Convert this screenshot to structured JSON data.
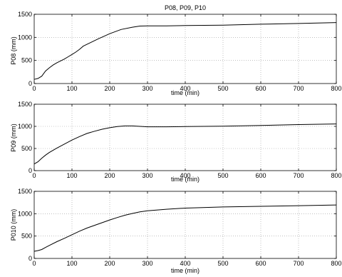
{
  "chart_data": [
    {
      "type": "line",
      "title": "P08, P09, P10",
      "xlabel": "time (min)",
      "ylabel": "P08 (mm)",
      "xlim": [
        0,
        800
      ],
      "ylim": [
        0,
        1500
      ],
      "xticks": [
        0,
        100,
        200,
        300,
        400,
        500,
        600,
        700,
        800
      ],
      "yticks": [
        0,
        500,
        1000,
        1500
      ],
      "grid": true,
      "series": [
        {
          "x": [
            0,
            10,
            20,
            30,
            40,
            50,
            60,
            70,
            80,
            90,
            100,
            110,
            120,
            130,
            150,
            170,
            200,
            230,
            260,
            280,
            300,
            350,
            400,
            500,
            600,
            700,
            800
          ],
          "y": [
            90,
            110,
            160,
            270,
            340,
            400,
            450,
            490,
            530,
            580,
            630,
            680,
            740,
            810,
            890,
            970,
            1080,
            1170,
            1220,
            1245,
            1250,
            1250,
            1255,
            1265,
            1285,
            1300,
            1320
          ]
        }
      ]
    },
    {
      "type": "line",
      "title": "",
      "xlabel": "time (min)",
      "ylabel": "P09 (mm)",
      "xlim": [
        0,
        800
      ],
      "ylim": [
        0,
        1500
      ],
      "xticks": [
        0,
        100,
        200,
        300,
        400,
        500,
        600,
        700,
        800
      ],
      "yticks": [
        0,
        500,
        1000,
        1500
      ],
      "grid": true,
      "series": [
        {
          "x": [
            0,
            10,
            20,
            30,
            40,
            60,
            80,
            100,
            120,
            140,
            160,
            180,
            200,
            220,
            240,
            260,
            280,
            300,
            350,
            400,
            500,
            600,
            700,
            800
          ],
          "y": [
            150,
            200,
            280,
            350,
            410,
            510,
            600,
            690,
            770,
            840,
            890,
            935,
            970,
            995,
            1010,
            1010,
            1000,
            990,
            990,
            995,
            1005,
            1020,
            1040,
            1055
          ]
        }
      ]
    },
    {
      "type": "line",
      "title": "",
      "xlabel": "time (min)",
      "ylabel": "P010 (mm)",
      "xlim": [
        0,
        800
      ],
      "ylim": [
        0,
        1500
      ],
      "xticks": [
        0,
        100,
        200,
        300,
        400,
        500,
        600,
        700,
        800
      ],
      "yticks": [
        0,
        500,
        1000,
        1500
      ],
      "grid": true,
      "series": [
        {
          "x": [
            0,
            10,
            20,
            30,
            40,
            60,
            80,
            100,
            120,
            140,
            160,
            180,
            200,
            220,
            240,
            260,
            280,
            300,
            350,
            400,
            500,
            600,
            700,
            800
          ],
          "y": [
            160,
            175,
            200,
            245,
            290,
            375,
            450,
            530,
            610,
            680,
            740,
            800,
            860,
            915,
            965,
            1005,
            1040,
            1065,
            1100,
            1125,
            1150,
            1165,
            1180,
            1195
          ]
        }
      ]
    }
  ]
}
